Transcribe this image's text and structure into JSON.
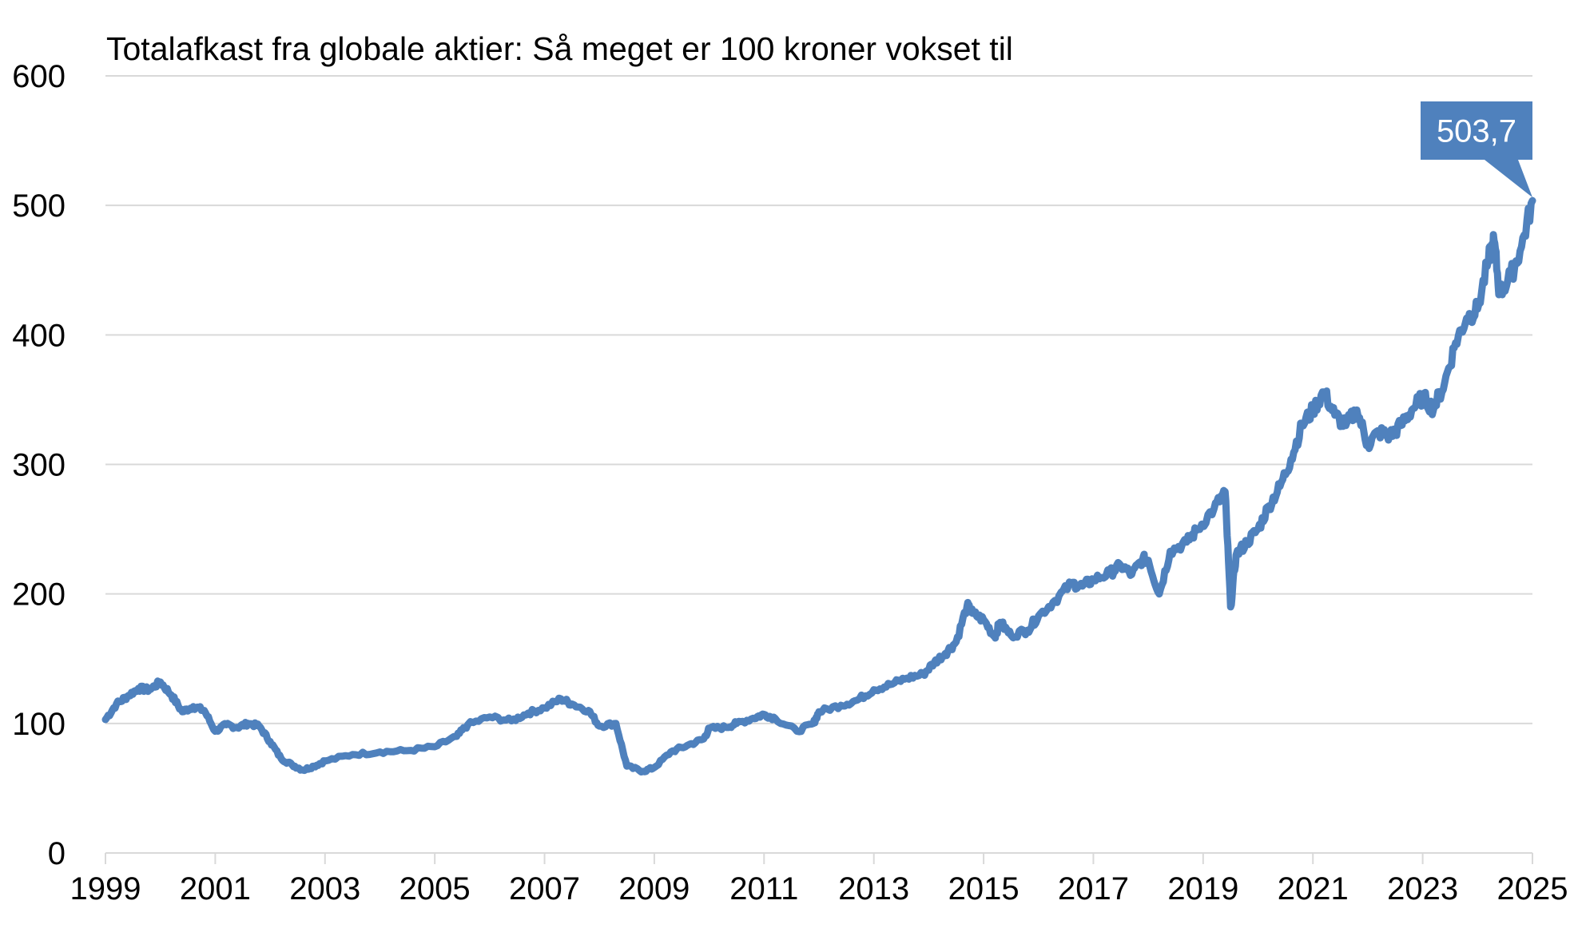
{
  "chart_data": {
    "type": "line",
    "title": "Totalafkast fra globale aktier: Så meget er 100 kroner vokset til",
    "xlabel": "",
    "ylabel": "",
    "xlim": [
      1999,
      2025
    ],
    "ylim": [
      0,
      600
    ],
    "x_ticks": [
      "1999",
      "2001",
      "2003",
      "2005",
      "2007",
      "2009",
      "2011",
      "2013",
      "2015",
      "2017",
      "2019",
      "2021",
      "2023",
      "2025"
    ],
    "y_ticks": [
      "0",
      "100",
      "200",
      "300",
      "400",
      "500",
      "600"
    ],
    "grid": true,
    "legend": "none",
    "line_color": "#4f81bd",
    "grid_color": "#d9d9d9",
    "callout": {
      "label": "503,7",
      "x": 2025.0,
      "y": 503.7
    },
    "series": [
      {
        "x": [
          1999.0,
          1999.2,
          1999.4,
          1999.6,
          1999.8,
          2000.0,
          2000.2,
          2000.4,
          2000.6,
          2000.8,
          2001.0,
          2001.2,
          2001.4,
          2001.6,
          2001.8,
          2002.0,
          2002.2,
          2002.4,
          2002.6,
          2002.8,
          2003.0,
          2003.5,
          2004.0,
          2004.5,
          2005.0,
          2005.4,
          2005.6,
          2006.0,
          2006.4,
          2006.7,
          2007.0,
          2007.3,
          2007.5,
          2007.8,
          2008.0,
          2008.3,
          2008.5,
          2008.8,
          2009.0,
          2009.3,
          2009.6,
          2009.9,
          2010.0,
          2010.3,
          2010.5,
          2010.8,
          2011.0,
          2011.2,
          2011.6,
          2011.9,
          2012.0,
          2012.4,
          2012.7,
          2013.0,
          2013.3,
          2013.6,
          2013.9,
          2014.1,
          2014.3,
          2014.5,
          2014.7,
          2014.8,
          2015.0,
          2015.2,
          2015.3,
          2015.5,
          2015.8,
          2016.0,
          2016.3,
          2016.6,
          2016.8,
          2017.0,
          2017.3,
          2017.5,
          2017.7,
          2017.9,
          2018.0,
          2018.2,
          2018.4,
          2018.7,
          2018.9,
          2019.2,
          2019.4,
          2019.5,
          2019.6,
          2019.8,
          2020.0,
          2020.2,
          2020.4,
          2020.6,
          2020.8,
          2021.0,
          2021.2,
          2021.4,
          2021.6,
          2021.8,
          2022.0,
          2022.2,
          2022.4,
          2022.6,
          2022.8,
          2023.0,
          2023.2,
          2023.4,
          2023.6,
          2023.8,
          2024.0,
          2024.2,
          2024.3,
          2024.4,
          2024.6,
          2024.8,
          2025.0
        ],
        "values": [
          103,
          115,
          121,
          127,
          126,
          132,
          122,
          109,
          113,
          110,
          94,
          99,
          97,
          100,
          98,
          86,
          73,
          68,
          64,
          67,
          71,
          76,
          78,
          79,
          82,
          90,
          99,
          105,
          102,
          108,
          112,
          119,
          115,
          110,
          98,
          100,
          67,
          63,
          66,
          78,
          83,
          88,
          96,
          97,
          100,
          104,
          107,
          104,
          94,
          100,
          109,
          114,
          118,
          126,
          130,
          135,
          138,
          147,
          154,
          163,
          191,
          185,
          180,
          167,
          178,
          168,
          172,
          183,
          195,
          208,
          206,
          211,
          216,
          222,
          215,
          227,
          226,
          200,
          233,
          240,
          250,
          266,
          279,
          190,
          230,
          240,
          250,
          268,
          283,
          304,
          330,
          342,
          356,
          338,
          330,
          342,
          315,
          325,
          322,
          330,
          342,
          352,
          343,
          363,
          394,
          413,
          420,
          458,
          473,
          432,
          445,
          468,
          503.7
        ]
      }
    ]
  }
}
